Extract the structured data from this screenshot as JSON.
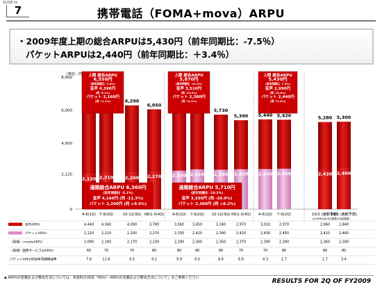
{
  "header": {
    "slide_label": "SLIDE №",
    "page_number": "7",
    "title": "携帯電話（FOMA+mova）ARPU"
  },
  "summary": {
    "line1": "・2009年度上期の総合ARPUは5,430円（前年同期比：-7.5％）",
    "line2": "パケットARPUは2,440円（前年同期比：＋3.4％）"
  },
  "footer": {
    "note": "◆ ARPUの定義および算出方法については、本資料の38頁「MOU・ARPUの定義および算出方法について」をご参照ください",
    "results": "RESULTS FOR 2Q OF FY2009"
  },
  "colors": {
    "voice": "#cc0000",
    "packet": "#d98cc4",
    "text_red": "#cc0000"
  },
  "chart_data": {
    "type": "bar",
    "ylabel": "(単位：円)",
    "yticks": [
      "8,000",
      "6,000",
      "4,000",
      "2,120",
      "0"
    ],
    "ylim": [
      0,
      8000
    ],
    "tick_values": [
      8000,
      6000,
      4000,
      2120,
      0
    ],
    "categories": [
      "4-6(1Q)",
      "7-9(2Q)",
      "10-12(3Q)",
      "08/1-3(4Q)",
      "4-6(1Q)",
      "7-9(2Q)",
      "10-12(3Q)",
      "09/1-3(4Q)",
      "4-6(1Q)",
      "7-9(2Q)",
      "10/3 (通期予想)",
      "10/3 (通期予想)"
    ],
    "category_subs": [
      "",
      "",
      "",
      "",
      "",
      "",
      "",
      "",
      "",
      "",
      "(2009年4月28日発表)",
      "(今回発表)"
    ],
    "series": [
      {
        "name": "音声ARPU",
        "values": [
          4440,
          4340,
          4090,
          3780,
          3560,
          3450,
          3340,
          2970,
          3010,
          2970,
          2860,
          2840
        ]
      },
      {
        "name": "パケットARPU",
        "values": [
          2120,
          2210,
          2200,
          2270,
          2330,
          2410,
          2390,
          2420,
          2430,
          2450,
          2420,
          2460
        ]
      }
    ],
    "totals": [
      "6,560",
      "6,550",
      "6,290",
      "6,050",
      "5,890",
      "5,860",
      "5,730",
      "5,390",
      "5,440",
      "5,420",
      "5,280",
      "5,300"
    ],
    "voice_labels": [
      "4,440",
      "4,340",
      "4,090",
      "3,780",
      "3,560",
      "3,450",
      "3,340",
      "2,970",
      "3,010",
      "2,970",
      "2,860",
      "2,840"
    ],
    "packet_labels": [
      "2,120",
      "2,210",
      "2,200",
      "2,270",
      "2,330",
      "2,410",
      "2,390",
      "2,420",
      "2,430",
      "2,450",
      "2,420",
      "2,460"
    ],
    "callouts": [
      {
        "lines": [
          "上期 総合ARPU",
          "6,550円",
          "(前年同期比 -3.8%)",
          "音声 4,390円",
          "(同 -6.1%)",
          "パケット 2,160円",
          "(同 +1.1%)"
        ]
      },
      {
        "lines": [
          "上期 総合ARPU",
          "5,870円",
          "(前年同期比 -10.4%)",
          "音声 3,510円",
          "(同 -20.0%)",
          "パケット 2,380円",
          "(同 +8.1%)"
        ]
      },
      {
        "lines": [
          "上期 総合ARPU",
          "5,430円",
          "(前年同期比 -7.5%)",
          "音声 2,990円",
          "(同 -14.8%)",
          "パケット 2,440円",
          "(同 +3.4%)"
        ]
      }
    ],
    "annual_boxes": [
      {
        "lines": [
          "通期総合ARPU 6,360円",
          "(前年同期比 -5.1%)",
          "音声 4,160円 (同 -11.3%)",
          "パケット 2,200円 (同 +9.5%)"
        ]
      },
      {
        "lines": [
          "通期総合ARPU 5,710円",
          "(前年同期比 -10.2%)",
          "音声 3,330円 (同 -20.0%)",
          "パケット 2,380円 (同 +8.2%)"
        ]
      }
    ],
    "table": {
      "rows": [
        {
          "label": "音声ARPU",
          "values": [
            "4,440",
            "4,340",
            "4,090",
            "3,780",
            "3,560",
            "3,450",
            "3,340",
            "2,970",
            "3,010",
            "2,970",
            "2,860",
            "2,840"
          ]
        },
        {
          "label": "パケットARPU",
          "values": [
            "2,120",
            "2,210",
            "2,200",
            "2,270",
            "2,330",
            "2,410",
            "2,390",
            "2,420",
            "2,430",
            "2,450",
            "2,420",
            "2,460"
          ]
        },
        {
          "label": "（再掲）i-modeARPU",
          "values": [
            "2,090",
            "2,180",
            "2,170",
            "2,230",
            "2,290",
            "2,360",
            "2,350",
            "2,370",
            "2,390",
            "2,390",
            "2,360",
            "2,390"
          ]
        },
        {
          "label": "（再掲）国際サービス分ARPU",
          "values": [
            "60",
            "70",
            "70",
            "80",
            "80",
            "90",
            "80",
            "70",
            "70",
            "80",
            "80",
            "80"
          ]
        },
        {
          "label": "パケットARPU対前年同期増減率",
          "values": [
            "7.6",
            "11.6",
            "9.5",
            "9.1",
            "9.9",
            "9.0",
            "8.6",
            "6.6",
            "4.3",
            "1.7",
            "1.7",
            "3.4"
          ]
        }
      ]
    }
  }
}
